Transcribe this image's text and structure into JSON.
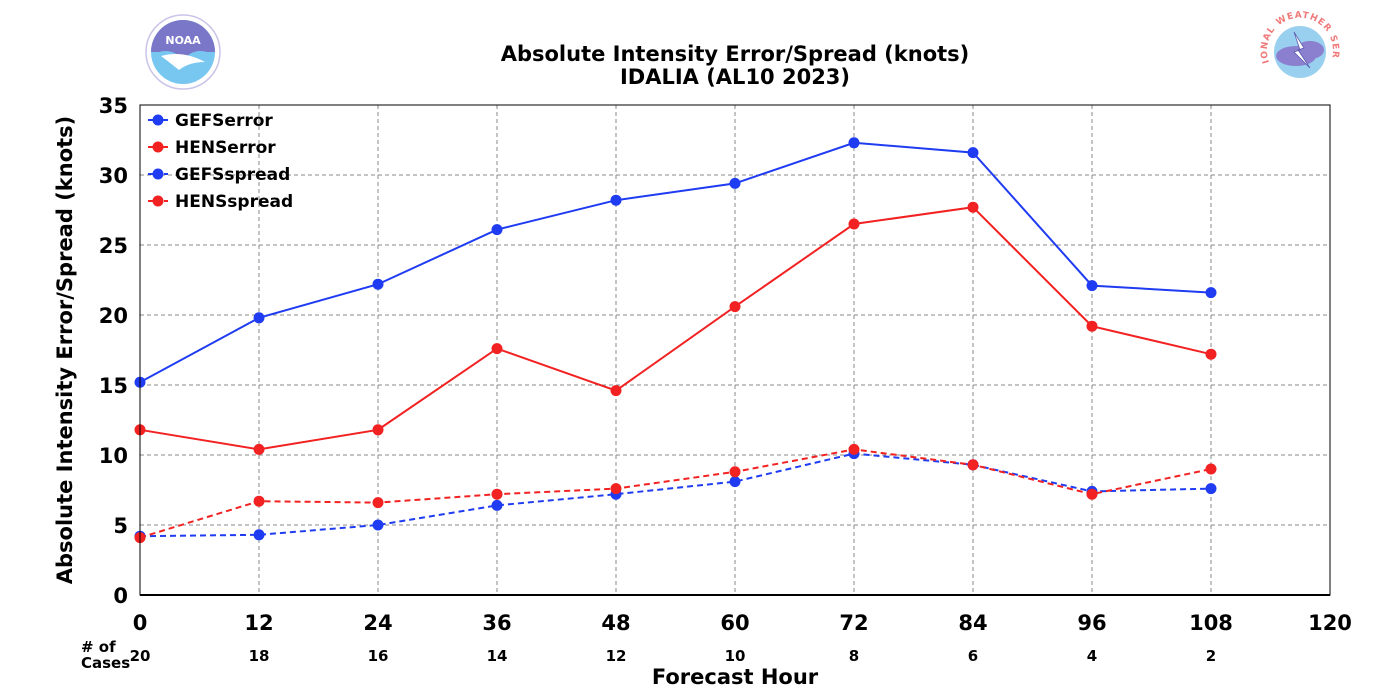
{
  "title": {
    "line1": "Absolute Intensity Error/Spread (knots)",
    "line2": "IDALIA (AL10 2023)"
  },
  "logos": {
    "left_text": "NOAA",
    "right_text": "NATIONAL WEATHER SERVICE"
  },
  "cases": {
    "label_line1": "# of",
    "label_line2": "Cases",
    "values": [
      "20",
      "18",
      "16",
      "14",
      "12",
      "10",
      "8",
      "6",
      "4",
      "2"
    ]
  },
  "chart_data": {
    "type": "line",
    "title": "Absolute Intensity Error/Spread (knots)",
    "subtitle": "IDALIA (AL10 2023)",
    "xlabel": "Forecast Hour",
    "ylabel": "Absolute Intensity Error/Spread (knots)",
    "xlim": [
      0,
      120
    ],
    "ylim": [
      0,
      35
    ],
    "xticks": [
      0,
      12,
      24,
      36,
      48,
      60,
      72,
      84,
      96,
      108,
      120
    ],
    "yticks": [
      0,
      5,
      10,
      15,
      20,
      25,
      30,
      35
    ],
    "grid": true,
    "legend_position": "top-left",
    "x": [
      0,
      12,
      24,
      36,
      48,
      60,
      72,
      84,
      96,
      108
    ],
    "series": [
      {
        "name": "GEFSerror",
        "color": "#1f3cf2",
        "line_style": "solid",
        "values": [
          15.2,
          19.8,
          22.2,
          26.1,
          28.2,
          29.4,
          32.3,
          31.6,
          22.1,
          21.6
        ]
      },
      {
        "name": "HENSerror",
        "color": "#f22222",
        "line_style": "solid",
        "values": [
          11.8,
          10.4,
          11.8,
          17.6,
          14.6,
          20.6,
          26.5,
          27.7,
          19.2,
          17.2
        ]
      },
      {
        "name": "GEFSspread",
        "color": "#1f3cf2",
        "line_style": "dashed",
        "values": [
          4.2,
          4.3,
          5.0,
          6.4,
          7.2,
          8.1,
          10.1,
          9.3,
          7.4,
          7.6
        ]
      },
      {
        "name": "HENSspread",
        "color": "#f22222",
        "line_style": "dashed",
        "values": [
          4.1,
          6.7,
          6.6,
          7.2,
          7.6,
          8.8,
          10.4,
          9.3,
          7.2,
          9.0
        ]
      }
    ]
  }
}
